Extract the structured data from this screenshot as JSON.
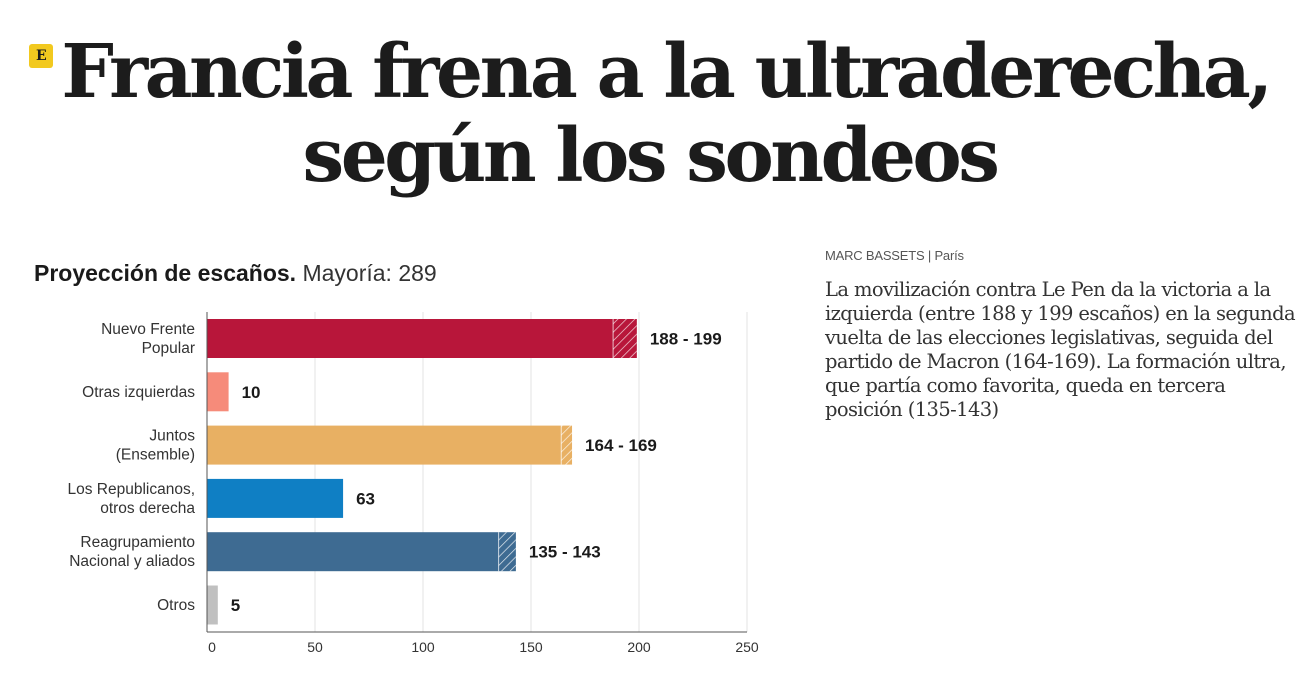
{
  "headline": {
    "logo_letter": "E",
    "line1": "Francia frena a la ultraderecha,",
    "line2": "según los sondeos"
  },
  "article": {
    "byline": "MARC BASSETS | París",
    "summary": "La movilización contra Le Pen da la victoria a la izquierda (entre 188 y 199 escaños) en la segunda vuelta de las elecciones legislativas, seguida del partido de Macron (164-169). La formación ultra, que partía como favorita, queda en tercera posición (135-143)"
  },
  "chart_data": {
    "type": "bar",
    "orientation": "horizontal",
    "title": "Proyección de escaños.",
    "subtitle": "Mayoría: 289",
    "xlabel": "",
    "ylabel": "",
    "xlim": [
      0,
      250
    ],
    "xticks": [
      0,
      50,
      100,
      150,
      200,
      250
    ],
    "grid": true,
    "categories": [
      [
        "Nuevo Frente",
        "Popular"
      ],
      [
        "Otras izquierdas"
      ],
      [
        "Juntos",
        "(Ensemble)"
      ],
      [
        "Los Republicanos,",
        "otros derecha"
      ],
      [
        "Reagrupamiento",
        "Nacional y aliados"
      ],
      [
        "Otros"
      ]
    ],
    "series": [
      {
        "name": "min",
        "values": [
          188,
          10,
          164,
          63,
          135,
          5
        ]
      },
      {
        "name": "max",
        "values": [
          199,
          10,
          169,
          63,
          143,
          5
        ]
      }
    ],
    "labels": [
      "188 - 199",
      "10",
      "164 - 169",
      "63",
      "135 - 143",
      "5"
    ],
    "colors": [
      "#b8163a",
      "#f68b7a",
      "#e8b063",
      "#0f7fc4",
      "#3e6b92",
      "#c0c0c0"
    ]
  }
}
